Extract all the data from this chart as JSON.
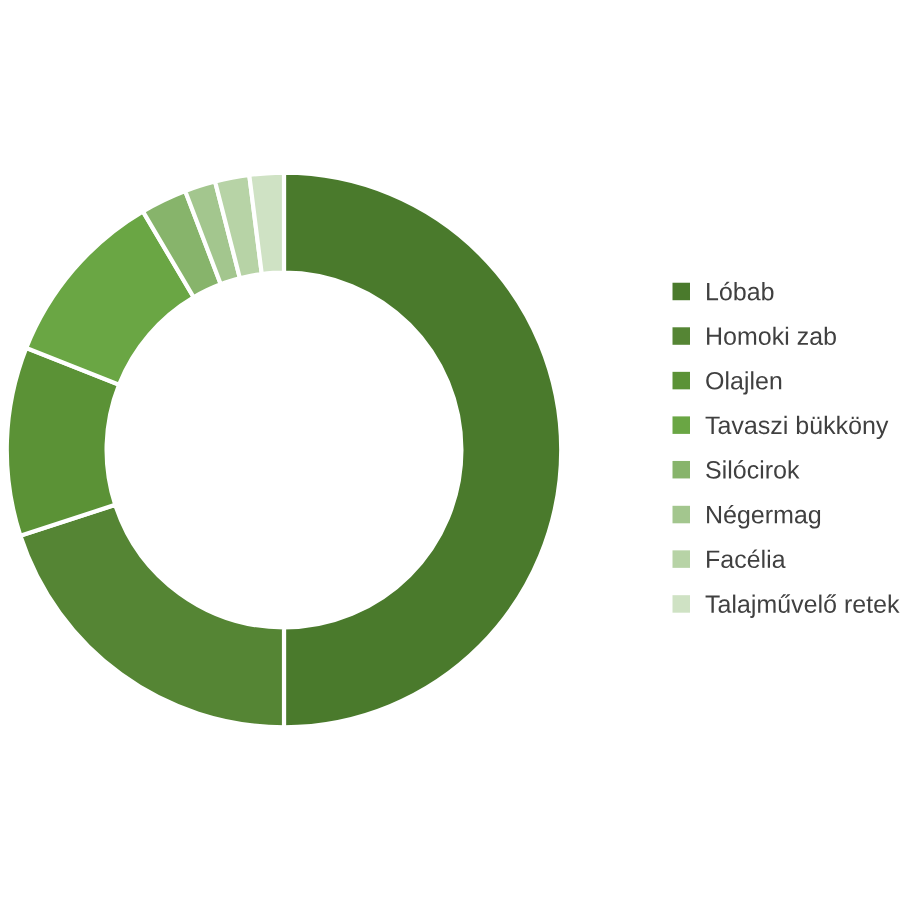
{
  "chart_data": {
    "type": "donut",
    "categories": [
      "Lóbab",
      "Homoki zab",
      "Olajlen",
      "Tavaszi bükköny",
      "Silócirok",
      "Négermag",
      "Facélia",
      "Talajművelő retek"
    ],
    "values": [
      50,
      20,
      11,
      10.5,
      2.7,
      1.8,
      2,
      2
    ],
    "colors": [
      "#4a7a2c",
      "#558534",
      "#5b9236",
      "#6aa644",
      "#87b46b",
      "#a3c68e",
      "#b7d3a6",
      "#cfe2c4"
    ],
    "legend": "right"
  }
}
